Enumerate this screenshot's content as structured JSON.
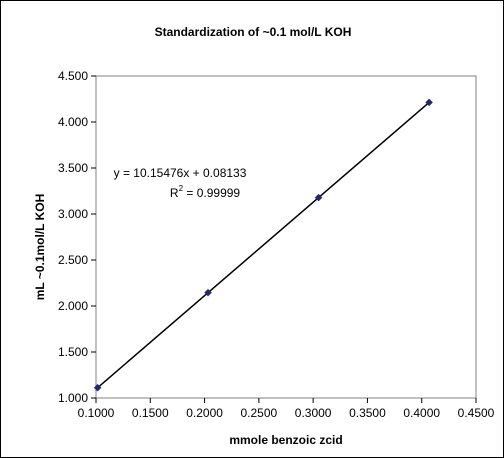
{
  "chart_data": {
    "type": "scatter",
    "title": "Standardization of ~0.1 mol/L KOH",
    "xlabel": "mmole benzoic zcid",
    "ylabel": "mL ~0.1mol/L KOH",
    "xlim": [
      0.1,
      0.45
    ],
    "ylim": [
      1.0,
      4.5
    ],
    "x_ticks": [
      "0.1000",
      "0.1500",
      "0.2000",
      "0.2500",
      "0.3000",
      "0.3500",
      "0.4000",
      "0.4500"
    ],
    "y_ticks": [
      "1.000",
      "1.500",
      "2.000",
      "2.500",
      "3.000",
      "3.500",
      "4.000",
      "4.500"
    ],
    "grid": false,
    "series": [
      {
        "x": [
          0.1015,
          0.2032,
          0.305,
          0.4068
        ],
        "y": [
          1.112,
          2.145,
          3.178,
          4.213
        ],
        "marker": "diamond",
        "color": "#1f2a6e"
      }
    ],
    "trendline": {
      "slope": 10.15476,
      "intercept": 0.08133,
      "color": "#000000"
    },
    "annotations": {
      "equation": "y = 10.15476x + 0.08133",
      "r2_prefix": "R",
      "r2_exp": "2",
      "r2_suffix": " = 0.99999"
    }
  }
}
